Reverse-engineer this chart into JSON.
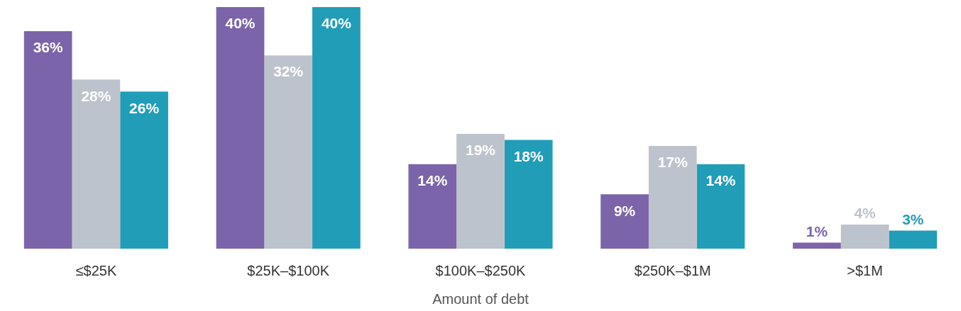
{
  "chart_data": {
    "type": "bar",
    "xlabel": "Amount of debt",
    "categories": [
      "≤$25K",
      "$25K–$100K",
      "$100K–$250K",
      "$250K–$1M",
      ">$1M"
    ],
    "grid": false,
    "legend": false,
    "tick_labels": "x",
    "series": [
      {
        "color": "#7b64a9",
        "values": [
          36,
          40,
          14,
          9,
          1
        ],
        "value_labels": [
          "36%",
          "40%",
          "14%",
          "9%",
          "1%"
        ]
      },
      {
        "color": "#bdc3cc",
        "values": [
          28,
          32,
          19,
          17,
          4
        ],
        "value_labels": [
          "28%",
          "32%",
          "19%",
          "17%",
          "4%"
        ]
      },
      {
        "color": "#219db8",
        "values": [
          26,
          40,
          18,
          14,
          3
        ],
        "value_labels": [
          "26%",
          "40%",
          "18%",
          "14%",
          "3%"
        ]
      }
    ]
  }
}
